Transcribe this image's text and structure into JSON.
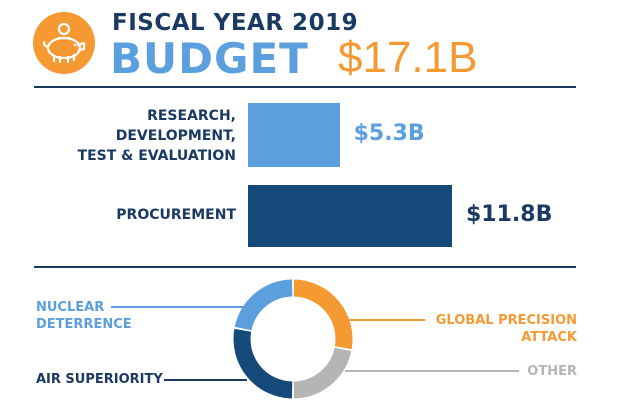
{
  "header": {
    "line1": "FISCAL YEAR 2019",
    "line2": "BUDGET",
    "total": "$17.1B",
    "icon": "piggy-bank-icon"
  },
  "colors": {
    "navy": "#1b3a63",
    "dark_blue": "#15497a",
    "light_blue": "#5b9fde",
    "orange": "#f59a33",
    "gray": "#b5b5b5"
  },
  "chart_data": [
    {
      "type": "bar",
      "orientation": "horizontal",
      "categories": [
        [
          "RESEARCH,",
          "DEVELOPMENT,",
          "TEST & EVALUATION"
        ],
        [
          "PROCUREMENT"
        ]
      ],
      "values": [
        5.3,
        11.8
      ],
      "value_labels": [
        "$5.3B",
        "$11.8B"
      ],
      "bar_colors": [
        "#5b9fde",
        "#15497a"
      ],
      "value_label_colors": [
        "#5b9fde",
        "#1b3a63"
      ]
    },
    {
      "type": "pie",
      "style": "donut",
      "labels": [
        [
          "GLOBAL PRECISION",
          "ATTACK"
        ],
        [
          "OTHER"
        ],
        [
          "AIR SUPERIORITY"
        ],
        [
          "NUCLEAR",
          "DETERRENCE"
        ]
      ],
      "values": [
        28,
        22,
        28,
        22
      ],
      "colors": [
        "#f59a33",
        "#b5b5b5",
        "#15497a",
        "#5b9fde"
      ],
      "label_colors": [
        "#f59a33",
        "#b5b5b5",
        "#1b3a63",
        "#5b9fde"
      ],
      "grid": false
    }
  ]
}
